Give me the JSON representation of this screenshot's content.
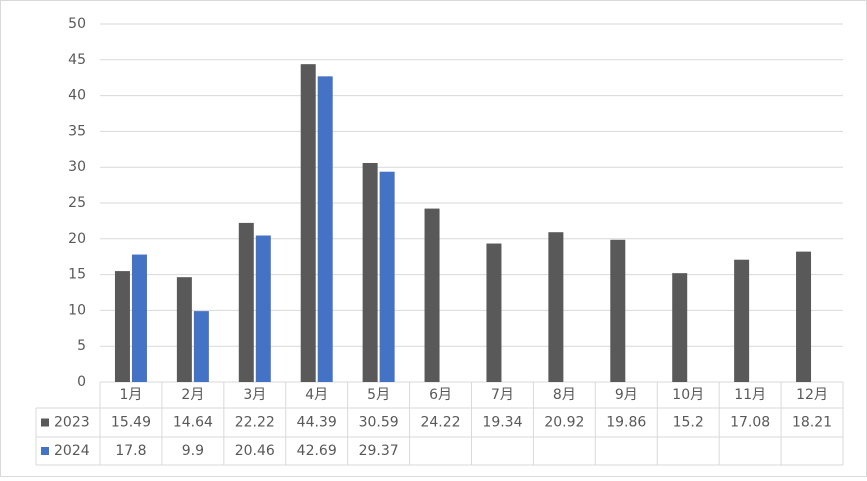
{
  "chart_data": {
    "type": "bar",
    "categories": [
      "1月",
      "2月",
      "3月",
      "4月",
      "5月",
      "6月",
      "7月",
      "8月",
      "9月",
      "10月",
      "11月",
      "12月"
    ],
    "series": [
      {
        "name": "2023",
        "color": "#595959",
        "values": [
          15.49,
          14.64,
          22.22,
          44.39,
          30.59,
          24.22,
          19.34,
          20.92,
          19.86,
          15.2,
          17.08,
          18.21
        ]
      },
      {
        "name": "2024",
        "color": "#4472c4",
        "values": [
          17.8,
          9.9,
          20.46,
          42.69,
          29.37,
          null,
          null,
          null,
          null,
          null,
          null,
          null
        ]
      }
    ],
    "ylim": [
      0,
      50
    ],
    "yticks": [
      0,
      5,
      10,
      15,
      20,
      25,
      30,
      35,
      40,
      45,
      50
    ],
    "grid": true
  }
}
